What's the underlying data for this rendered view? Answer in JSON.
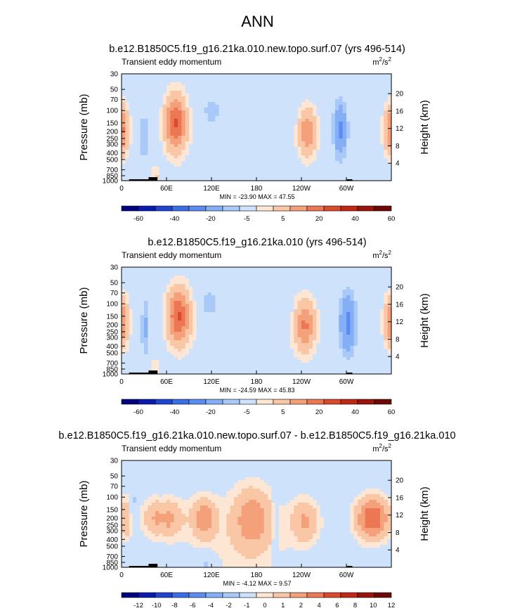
{
  "title": "ANN",
  "chart_data": [
    {
      "type": "heatmap",
      "title": "b.e12.B1850C5.f19_g16.21ka.010.new.topo.surf.07 (yrs 496-514)",
      "subtitle": "Transient eddy momentum",
      "units_base": "m",
      "units_sup1": "2",
      "units_mid": "/s",
      "units_sup2": "2",
      "ylabel": "Pressure (mb)",
      "ylabel_right": "Height (km)",
      "xticks": [
        "0",
        "60E",
        "120E",
        "180",
        "120W",
        "60W"
      ],
      "yticks": [
        "30",
        "50",
        "70",
        "100",
        "150",
        "200",
        "250",
        "300",
        "400",
        "500",
        "700",
        "850",
        "1000"
      ],
      "yticks_right": [
        "20",
        "16",
        "12",
        "8",
        "4"
      ],
      "stats": "MIN = -23.90   MAX =  47.55",
      "min": -23.9,
      "max": 47.55,
      "levels": [
        -70,
        -60,
        -50,
        -40,
        -30,
        -20,
        -10,
        -5,
        5,
        10,
        20,
        30,
        40,
        50,
        60,
        70
      ],
      "cbar_labels": [
        "-60",
        "-40",
        "-20",
        "-5",
        "5",
        "20",
        "40",
        "60"
      ],
      "colors": [
        "#02037e",
        "#0b1bb0",
        "#1e44d0",
        "#3b6ee5",
        "#5c8cf0",
        "#84aef5",
        "#a9c9f8",
        "#cfe2fb",
        "#fde6d4",
        "#f9c6a6",
        "#f4a07a",
        "#ec7754",
        "#dc4a2e",
        "#bf2716",
        "#98140c",
        "#6e0a06"
      ],
      "blobs": [
        {
          "lon": 0,
          "p": 190,
          "v": 32,
          "slon": 10,
          "slp": 0.12
        },
        {
          "lon": 360,
          "p": 190,
          "v": 32,
          "slon": 10,
          "slp": 0.12
        },
        {
          "lon": 72,
          "p": 150,
          "v": 40,
          "slon": 14,
          "slp": 0.13
        },
        {
          "lon": 248,
          "p": 200,
          "v": 28,
          "slon": 13,
          "slp": 0.12
        },
        {
          "lon": 30,
          "p": 240,
          "v": -9,
          "slon": 6,
          "slp": 0.16
        },
        {
          "lon": 120,
          "p": 105,
          "v": -10,
          "slon": 12,
          "slp": 0.07
        },
        {
          "lon": 292,
          "p": 190,
          "v": -22,
          "slon": 9,
          "slp": 0.13
        },
        {
          "lon": 45,
          "p": 850,
          "v": 18,
          "slon": 3,
          "slp": 0.05
        },
        {
          "lon": 185,
          "p": 60,
          "v": -6,
          "slon": 60,
          "slp": 0.3
        },
        {
          "lon": 150,
          "p": 450,
          "v": 4,
          "slon": 90,
          "slp": 0.5
        }
      ]
    },
    {
      "type": "heatmap",
      "title": "b.e12.B1850C5.f19_g16.21ka.010 (yrs 496-514)",
      "subtitle": "Transient eddy momentum",
      "units_base": "m",
      "units_sup1": "2",
      "units_mid": "/s",
      "units_sup2": "2",
      "ylabel": "Pressure (mb)",
      "ylabel_right": "Height (km)",
      "xticks": [
        "0",
        "60E",
        "120E",
        "180",
        "120W",
        "60W"
      ],
      "yticks": [
        "30",
        "50",
        "70",
        "100",
        "150",
        "200",
        "250",
        "300",
        "400",
        "500",
        "700",
        "850",
        "1000"
      ],
      "yticks_right": [
        "20",
        "16",
        "12",
        "8",
        "4"
      ],
      "stats": "MIN = -24.59   MAX =  45.83",
      "min": -24.59,
      "max": 45.83,
      "levels": [
        -70,
        -60,
        -50,
        -40,
        -30,
        -20,
        -10,
        -5,
        5,
        10,
        20,
        30,
        40,
        50,
        60,
        70
      ],
      "cbar_labels": [
        "-60",
        "-40",
        "-20",
        "-5",
        "5",
        "20",
        "40",
        "60"
      ],
      "colors": [
        "#02037e",
        "#0b1bb0",
        "#1e44d0",
        "#3b6ee5",
        "#5c8cf0",
        "#84aef5",
        "#a9c9f8",
        "#cfe2fb",
        "#fde6d4",
        "#f9c6a6",
        "#f4a07a",
        "#ec7754",
        "#dc4a2e",
        "#bf2716",
        "#98140c",
        "#6e0a06"
      ],
      "blobs": [
        {
          "lon": 0,
          "p": 180,
          "v": 30,
          "slon": 10,
          "slp": 0.12
        },
        {
          "lon": 360,
          "p": 180,
          "v": 30,
          "slon": 10,
          "slp": 0.12
        },
        {
          "lon": 76,
          "p": 150,
          "v": 40,
          "slon": 15,
          "slp": 0.13
        },
        {
          "lon": 245,
          "p": 200,
          "v": 30,
          "slon": 14,
          "slp": 0.12
        },
        {
          "lon": 32,
          "p": 220,
          "v": -12,
          "slon": 6,
          "slp": 0.14
        },
        {
          "lon": 118,
          "p": 100,
          "v": -12,
          "slon": 12,
          "slp": 0.07
        },
        {
          "lon": 302,
          "p": 190,
          "v": -24,
          "slon": 11,
          "slp": 0.14
        },
        {
          "lon": 45,
          "p": 850,
          "v": 16,
          "slon": 3,
          "slp": 0.05
        },
        {
          "lon": 205,
          "p": 140,
          "v": -6,
          "slon": 22,
          "slp": 0.08
        },
        {
          "lon": 160,
          "p": 450,
          "v": 4,
          "slon": 90,
          "slp": 0.5
        }
      ]
    },
    {
      "type": "heatmap",
      "title": "b.e12.B1850C5.f19_g16.21ka.010.new.topo.surf.07 - b.e12.B1850C5.f19_g16.21ka.010",
      "subtitle": "Transient eddy momentum",
      "units_base": "m",
      "units_sup1": "2",
      "units_mid": "/s",
      "units_sup2": "2",
      "ylabel": "Pressure (mb)",
      "ylabel_right": "Height (km)",
      "xticks": [
        "0",
        "60E",
        "120E",
        "180",
        "120W",
        "60W"
      ],
      "yticks": [
        "30",
        "50",
        "70",
        "100",
        "150",
        "200",
        "250",
        "300",
        "400",
        "500",
        "700",
        "850",
        "1000"
      ],
      "yticks_right": [
        "20",
        "16",
        "12",
        "8",
        "4"
      ],
      "stats": "MIN =  -4.12   MAX =   9.57",
      "min": -4.12,
      "max": 9.57,
      "levels": [
        -14,
        -12,
        -10,
        -8,
        -6,
        -4,
        -2,
        -1,
        1,
        2,
        4,
        6,
        8,
        10,
        12,
        14
      ],
      "cbar_labels": [
        "-12",
        "-10",
        "-8",
        "-6",
        "-4",
        "-2",
        "-1",
        "0",
        "1",
        "2",
        "4",
        "6",
        "8",
        "10",
        "12"
      ],
      "colors": [
        "#02037e",
        "#0b1bb0",
        "#1e44d0",
        "#3b6ee5",
        "#5c8cf0",
        "#84aef5",
        "#a9c9f8",
        "#cfe2fb",
        "#fde6d4",
        "#f9c6a6",
        "#f4a07a",
        "#ec7754",
        "#dc4a2e",
        "#bf2716",
        "#98140c",
        "#6e0a06"
      ],
      "blobs": [
        {
          "lon": 55,
          "p": 200,
          "v": 5,
          "slon": 25,
          "slp": 0.09
        },
        {
          "lon": 110,
          "p": 200,
          "v": 5,
          "slon": 15,
          "slp": 0.09
        },
        {
          "lon": 175,
          "p": 200,
          "v": 4.5,
          "slon": 25,
          "slp": 0.14
        },
        {
          "lon": 245,
          "p": 220,
          "v": 4,
          "slon": 18,
          "slp": 0.1
        },
        {
          "lon": 335,
          "p": 200,
          "v": 8,
          "slon": 22,
          "slp": 0.1
        },
        {
          "lon": 5,
          "p": 200,
          "v": 4,
          "slon": 8,
          "slp": 0.1
        },
        {
          "lon": 15,
          "p": 120,
          "v": -2,
          "slon": 5,
          "slp": 0.07
        },
        {
          "lon": 55,
          "p": 200,
          "v": -2,
          "slon": 3,
          "slp": 0.1
        },
        {
          "lon": 205,
          "p": 250,
          "v": -1.5,
          "slon": 5,
          "slp": 0.15
        },
        {
          "lon": 115,
          "p": 900,
          "v": -2,
          "slon": 12,
          "slp": 0.06
        },
        {
          "lon": 160,
          "p": 400,
          "v": 1.5,
          "slon": 80,
          "slp": 0.25
        }
      ]
    }
  ]
}
